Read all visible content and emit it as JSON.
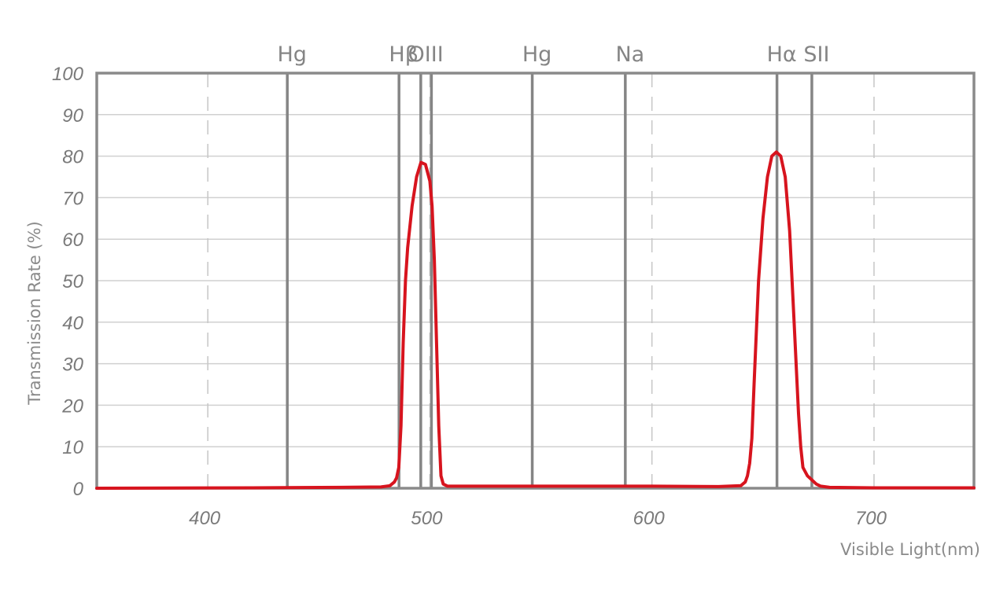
{
  "chart_data": {
    "type": "line",
    "title": "",
    "xlabel": "Visible Light(nm)",
    "ylabel": "Transmission Rate (%)",
    "xlim": [
      350,
      745
    ],
    "ylim": [
      0,
      100
    ],
    "x_ticks": [
      {
        "value": 400,
        "label": "400"
      },
      {
        "value": 500,
        "label": "500"
      },
      {
        "value": 600,
        "label": "600"
      },
      {
        "value": 700,
        "label": "700"
      }
    ],
    "y_ticks": [
      {
        "value": 0,
        "label": "0"
      },
      {
        "value": 10,
        "label": "10"
      },
      {
        "value": 20,
        "label": "20"
      },
      {
        "value": 30,
        "label": "30"
      },
      {
        "value": 40,
        "label": "40"
      },
      {
        "value": 50,
        "label": "50"
      },
      {
        "value": 60,
        "label": "60"
      },
      {
        "value": 70,
        "label": "70"
      },
      {
        "value": 80,
        "label": "80"
      },
      {
        "value": 90,
        "label": "90"
      },
      {
        "value": 100,
        "label": "100"
      }
    ],
    "grid": true,
    "emission_lines": [
      {
        "label": "Hg",
        "wavelength": 435.8
      },
      {
        "label": "Hβ",
        "wavelength": 486.1
      },
      {
        "label": "OIII",
        "wavelength": 495.9,
        "label_anchor": 496
      },
      {
        "label": "",
        "wavelength": 500.7
      },
      {
        "label": "Hg",
        "wavelength": 546.1
      },
      {
        "label": "Na",
        "wavelength": 588.0
      },
      {
        "label": "Hα",
        "wavelength": 656.3
      },
      {
        "label": "SII",
        "wavelength": 672.0
      }
    ],
    "series": [
      {
        "color": "#d7141e",
        "x": [
          350,
          420,
          460,
          478,
          482,
          484,
          485,
          486,
          487,
          488,
          489,
          490,
          492,
          494,
          496,
          498,
          500,
          501,
          502,
          503,
          504,
          505,
          506,
          508,
          520,
          560,
          600,
          630,
          640,
          642,
          643,
          644,
          645,
          646,
          648,
          650,
          652,
          654,
          656,
          658,
          660,
          662,
          664,
          666,
          667,
          668,
          670,
          672,
          674,
          676,
          680,
          700,
          745
        ],
        "y": [
          0,
          0.1,
          0.2,
          0.3,
          0.6,
          1.5,
          2.5,
          5,
          15,
          35,
          50,
          58,
          68,
          75,
          78.5,
          78,
          74,
          68,
          55,
          35,
          15,
          3,
          1,
          0.5,
          0.5,
          0.5,
          0.5,
          0.4,
          0.6,
          1.5,
          3,
          6,
          12,
          25,
          50,
          65,
          75,
          80,
          81,
          80,
          75,
          62,
          40,
          18,
          10,
          5,
          3,
          2,
          1,
          0.5,
          0.2,
          0.1,
          0.1
        ]
      }
    ]
  }
}
